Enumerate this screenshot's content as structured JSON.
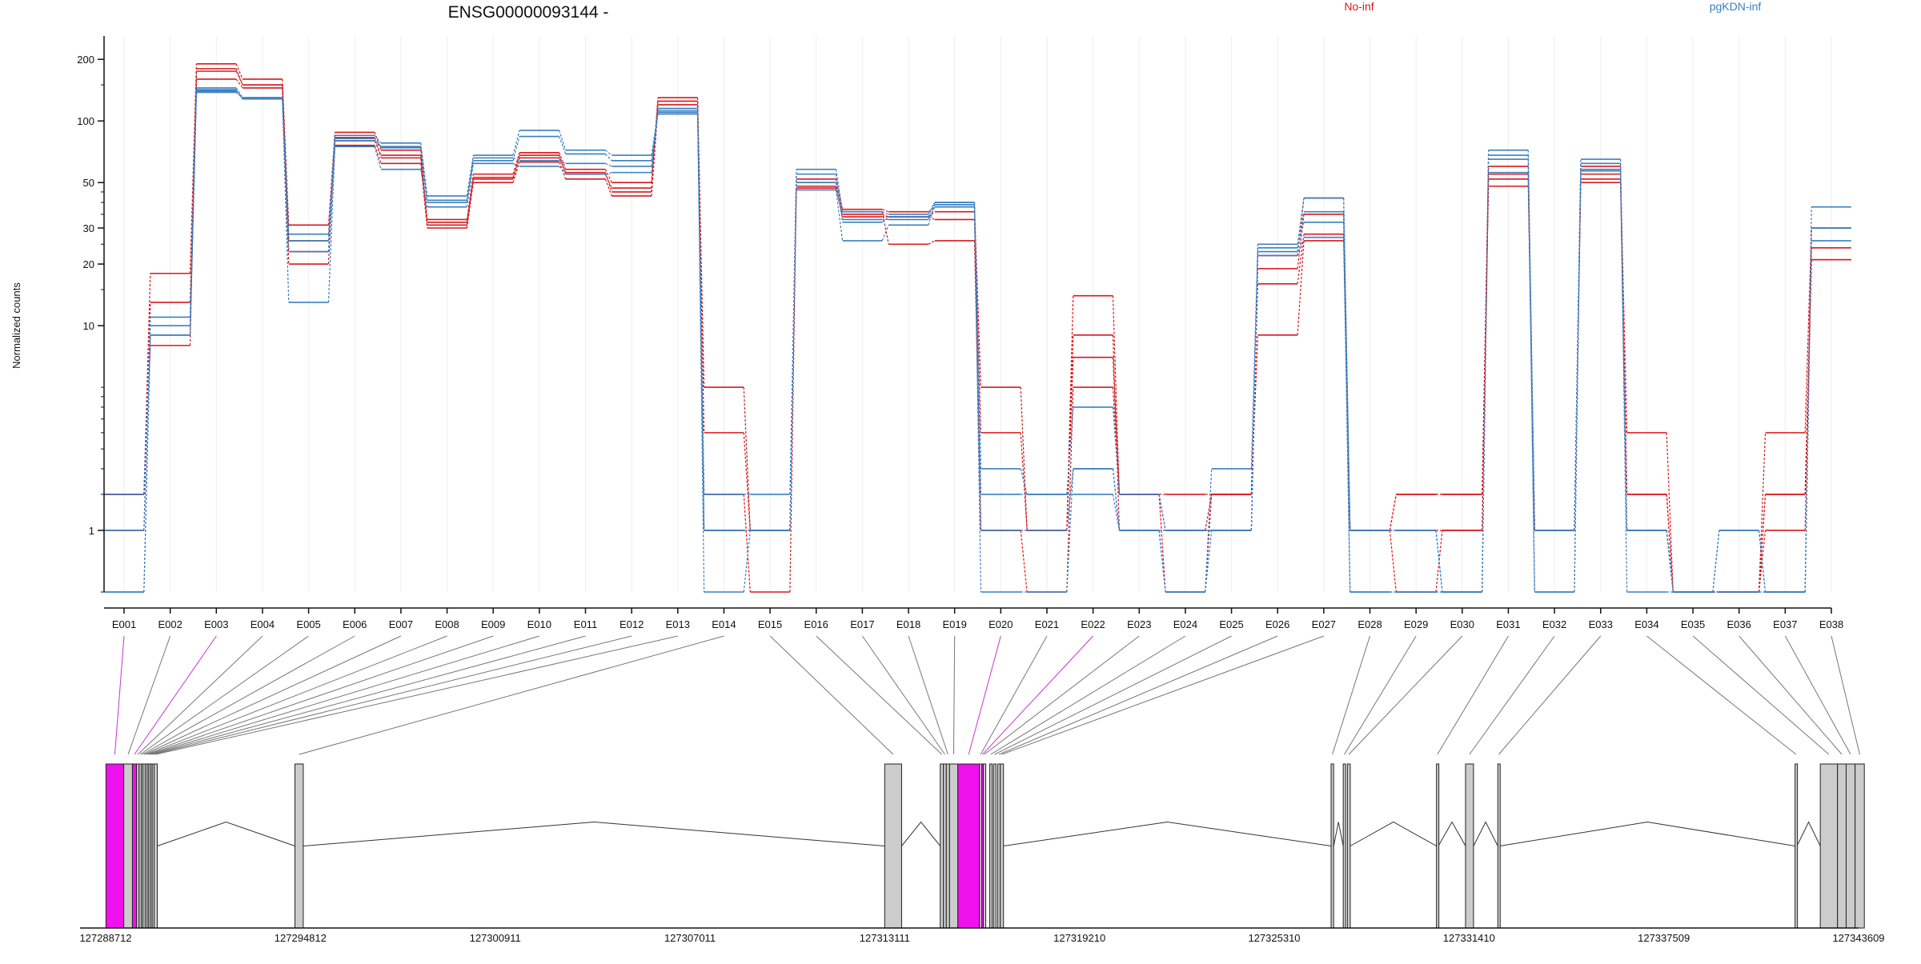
{
  "chart_data": {
    "type": "line",
    "title": "ENSG00000093144 -",
    "xlabel": "",
    "ylabel": "Normalized counts",
    "y_scale": "log",
    "ylim": [
      0.5,
      260
    ],
    "y_ticks": [
      1,
      10,
      20,
      30,
      50,
      100,
      200
    ],
    "legend": [
      {
        "label": "No-inf",
        "color": "#d7191c"
      },
      {
        "label": "pgKDN-inf",
        "color": "#3a7fc0"
      }
    ],
    "legend_placement": "top",
    "categories": [
      "E001",
      "E002",
      "E003",
      "E004",
      "E005",
      "E006",
      "E007",
      "E008",
      "E009",
      "E010",
      "E011",
      "E012",
      "E013",
      "E014",
      "E015",
      "E016",
      "E017",
      "E018",
      "E019",
      "E020",
      "E021",
      "E022",
      "E023",
      "E024",
      "E025",
      "E026",
      "E027",
      "E028",
      "E029",
      "E030",
      "E031",
      "E032",
      "E033",
      "E034",
      "E035",
      "E036",
      "E037",
      "E038"
    ],
    "series": [
      {
        "group": "No-inf",
        "color": "#d7191c",
        "values": [
          1.5,
          18,
          190,
          160,
          31,
          88,
          72,
          33,
          55,
          70,
          58,
          50,
          130,
          5,
          1,
          52,
          37,
          36,
          38,
          5,
          1,
          14,
          1.5,
          1.5,
          1.5,
          22,
          42,
          1,
          1.5,
          1.5,
          60,
          1,
          60,
          1.5,
          0.5,
          0.5,
          1,
          24
        ]
      },
      {
        "group": "No-inf",
        "color": "#d7191c",
        "values": [
          1,
          13,
          175,
          150,
          26,
          80,
          68,
          31,
          52,
          66,
          55,
          47,
          120,
          3,
          1,
          48,
          35,
          34,
          36,
          3,
          1,
          9,
          1,
          1,
          1,
          19,
          35,
          1,
          1,
          1,
          55,
          1,
          55,
          3,
          0.5,
          0.5,
          3,
          30
        ]
      },
      {
        "group": "No-inf",
        "color": "#d7191c",
        "values": [
          1.5,
          9,
          160,
          145,
          23,
          76,
          62,
          30,
          50,
          63,
          52,
          43,
          115,
          1.5,
          0.5,
          47,
          34,
          34,
          33,
          1,
          1,
          7,
          1.5,
          0.5,
          1.5,
          16,
          28,
          1,
          1.5,
          1.5,
          48,
          1,
          50,
          1.5,
          0.5,
          0.5,
          1.5,
          21
        ]
      },
      {
        "group": "No-inf",
        "color": "#d7191c",
        "values": [
          1.5,
          8,
          180,
          150,
          20,
          83,
          66,
          32,
          53,
          68,
          56,
          45,
          125,
          1,
          1,
          50,
          36,
          25,
          26,
          1,
          0.5,
          5,
          1.5,
          1,
          1.5,
          9,
          26,
          1,
          0.5,
          1,
          52,
          1,
          52,
          1,
          0.5,
          0.5,
          1.5,
          21
        ]
      },
      {
        "group": "pgKDN-inf",
        "color": "#3a7fc0",
        "values": [
          1.5,
          11,
          145,
          130,
          28,
          85,
          78,
          43,
          68,
          90,
          72,
          68,
          110,
          1.5,
          1.5,
          58,
          36,
          35,
          40,
          2,
          1.5,
          4,
          1.5,
          1,
          1,
          25,
          42,
          1,
          1,
          0.5,
          72,
          1,
          65,
          1,
          0.5,
          1,
          0.5,
          38
        ]
      },
      {
        "group": "pgKDN-inf",
        "color": "#3a7fc0",
        "values": [
          1,
          10,
          140,
          128,
          23,
          80,
          74,
          41,
          64,
          84,
          69,
          64,
          108,
          1,
          1,
          55,
          32,
          34,
          40,
          1.5,
          1.5,
          1.5,
          1,
          0.5,
          1,
          23,
          36,
          1,
          1,
          0.5,
          68,
          1,
          62,
          1,
          0.5,
          1,
          0.5,
          26
        ]
      },
      {
        "group": "pgKDN-inf",
        "color": "#3a7fc0",
        "values": [
          0.5,
          9,
          138,
          130,
          13,
          75,
          58,
          38,
          62,
          60,
          55,
          56,
          112,
          0.5,
          1,
          46,
          26,
          31,
          39,
          1,
          1,
          2,
          1,
          0.5,
          2,
          24,
          32,
          0.5,
          0.5,
          0.5,
          65,
          0.5,
          58,
          0.5,
          0.5,
          0.5,
          0.5,
          30
        ]
      },
      {
        "group": "pgKDN-inf",
        "color": "#3a7fc0",
        "values": [
          0.5,
          9,
          142,
          128,
          26,
          82,
          75,
          40,
          66,
          64,
          62,
          60,
          115,
          1,
          1,
          50,
          33,
          33,
          38,
          0.5,
          0.5,
          2,
          1,
          1,
          1,
          22,
          27,
          0.5,
          0.5,
          0.5,
          56,
          0.5,
          57,
          1,
          0.5,
          0.5,
          0.5,
          30
        ]
      }
    ]
  },
  "gene_model": {
    "coordinates": [
      "127288712",
      "127294812",
      "127300911",
      "127307011",
      "127313111",
      "127319210",
      "127325310",
      "127331410",
      "127337509",
      "127343609"
    ],
    "coord_range": [
      127288712,
      127343609
    ],
    "highlight_color": "#ee11ee",
    "exons": [
      {
        "name": "E001",
        "start": 127288720,
        "end": 127289280,
        "highlight": true
      },
      {
        "name": "E002",
        "start": 127289280,
        "end": 127289550
      },
      {
        "name": "E003",
        "start": 127289550,
        "end": 127289680,
        "highlight": true
      },
      {
        "name": "E004",
        "start": 127289680,
        "end": 127289760
      },
      {
        "name": "E005",
        "start": 127289760,
        "end": 127289830
      },
      {
        "name": "E006",
        "start": 127289830,
        "end": 127289880
      },
      {
        "name": "E007",
        "start": 127289880,
        "end": 127289950
      },
      {
        "name": "E008",
        "start": 127289950,
        "end": 127290010
      },
      {
        "name": "E009",
        "start": 127290010,
        "end": 127290060
      },
      {
        "name": "E010",
        "start": 127290060,
        "end": 127290120
      },
      {
        "name": "E011",
        "start": 127290120,
        "end": 127290170
      },
      {
        "name": "E012",
        "start": 127290170,
        "end": 127290230
      },
      {
        "name": "E013",
        "start": 127290230,
        "end": 127290330
      },
      {
        "name": "E014",
        "start": 127294640,
        "end": 127294900
      },
      {
        "name": "E015",
        "start": 127313110,
        "end": 127313640
      },
      {
        "name": "E016",
        "start": 127314850,
        "end": 127314950
      },
      {
        "name": "E017",
        "start": 127314950,
        "end": 127315040
      },
      {
        "name": "E018",
        "start": 127315040,
        "end": 127315140
      },
      {
        "name": "E019",
        "start": 127315140,
        "end": 127315400
      },
      {
        "name": "E020",
        "start": 127315400,
        "end": 127316080,
        "highlight": true
      },
      {
        "name": "E021",
        "start": 127316080,
        "end": 127316150
      },
      {
        "name": "E022",
        "start": 127316150,
        "end": 127316200,
        "highlight": true
      },
      {
        "name": "E023",
        "start": 127316200,
        "end": 127316260
      },
      {
        "name": "E024",
        "start": 127316400,
        "end": 127316460
      },
      {
        "name": "E025",
        "start": 127316520,
        "end": 127316580
      },
      {
        "name": "E026",
        "start": 127316650,
        "end": 127316730
      },
      {
        "name": "E027",
        "start": 127316730,
        "end": 127316830
      },
      {
        "name": "E028",
        "start": 127327090,
        "end": 127327170
      },
      {
        "name": "E029",
        "start": 127327470,
        "end": 127327540
      },
      {
        "name": "E030",
        "start": 127327600,
        "end": 127327690
      },
      {
        "name": "E031",
        "start": 127330390,
        "end": 127330450
      },
      {
        "name": "E032",
        "start": 127331300,
        "end": 127331550
      },
      {
        "name": "E033",
        "start": 127332310,
        "end": 127332370
      },
      {
        "name": "E034",
        "start": 127341620,
        "end": 127341680
      },
      {
        "name": "E035",
        "start": 127342410,
        "end": 127342950
      },
      {
        "name": "E036",
        "start": 127342950,
        "end": 127343220
      },
      {
        "name": "E037",
        "start": 127343220,
        "end": 127343500
      },
      {
        "name": "E038",
        "start": 127343500,
        "end": 127343790
      }
    ]
  }
}
